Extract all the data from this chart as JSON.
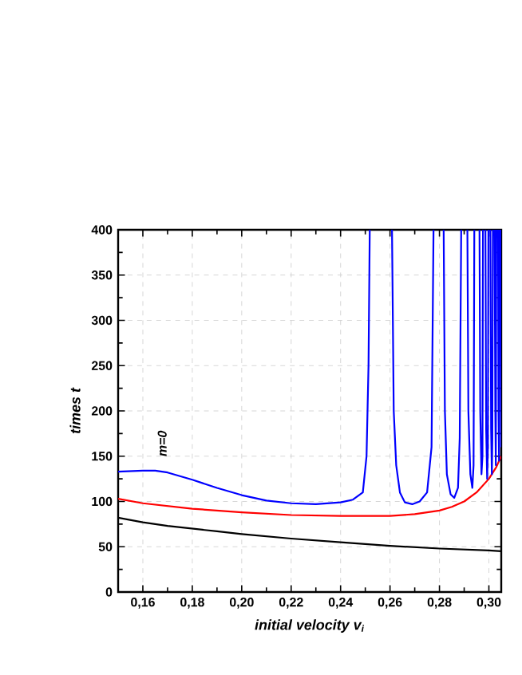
{
  "chart_data": {
    "type": "line",
    "xlabel": "initial velocity v$_{i}$",
    "ylabel": "times t",
    "xlim": [
      0.15,
      0.305
    ],
    "ylim": [
      0,
      400
    ],
    "xticks": [
      {
        "value": 0.16,
        "label": "0,16"
      },
      {
        "value": 0.18,
        "label": "0,18"
      },
      {
        "value": 0.2,
        "label": "0,20"
      },
      {
        "value": 0.22,
        "label": "0,22"
      },
      {
        "value": 0.24,
        "label": "0,24"
      },
      {
        "value": 0.26,
        "label": "0,26"
      },
      {
        "value": 0.28,
        "label": "0,28"
      },
      {
        "value": 0.3,
        "label": "0,30"
      }
    ],
    "yticks": [
      0,
      50,
      100,
      150,
      200,
      250,
      300,
      350,
      400
    ],
    "grid": true,
    "marker": "none",
    "line_style": "solid",
    "annotations": [
      "m=0"
    ],
    "series": [
      {
        "color": "#000000",
        "x": [
          0.15,
          0.16,
          0.17,
          0.18,
          0.19,
          0.2,
          0.22,
          0.24,
          0.26,
          0.28,
          0.3,
          0.305
        ],
        "values": [
          82,
          77,
          73,
          70,
          67,
          64,
          59,
          55,
          51,
          48,
          46,
          45
        ]
      },
      {
        "color": "#ff0000",
        "x": [
          0.15,
          0.16,
          0.18,
          0.2,
          0.22,
          0.24,
          0.26,
          0.27,
          0.28,
          0.285,
          0.29,
          0.295,
          0.3,
          0.303,
          0.305
        ],
        "values": [
          103,
          98,
          92,
          88,
          85,
          84,
          84,
          86,
          90,
          94,
          100,
          110,
          125,
          138,
          150
        ]
      },
      {
        "color": "#0000ff",
        "x": [
          0.15,
          0.16,
          0.165,
          0.17,
          0.18,
          0.19,
          0.2,
          0.21,
          0.22,
          0.23,
          0.24,
          0.245,
          0.249,
          0.2505,
          0.2513,
          0.2518,
          0.2525,
          0.2608,
          0.2615,
          0.2625,
          0.264,
          0.266,
          0.269,
          0.272,
          0.275,
          0.2768,
          0.2776,
          0.278,
          0.2817,
          0.2822,
          0.283,
          0.2845,
          0.286,
          0.2875,
          0.2882,
          0.2888,
          0.289,
          0.2913,
          0.2917,
          0.2925,
          0.2933,
          0.2938,
          0.2941,
          0.2945,
          0.2962,
          0.2965,
          0.297,
          0.2974,
          0.2976,
          0.2978,
          0.2986,
          0.2989,
          0.2993,
          0.2996,
          0.2998,
          0.3,
          0.3006,
          0.3009,
          0.3012,
          0.3014,
          0.3016,
          0.302,
          0.3023,
          0.3026,
          0.3028,
          0.303,
          0.3034,
          0.3037,
          0.3039,
          0.3041,
          0.3043,
          0.3046,
          0.3048,
          0.305
        ],
        "values": [
          133,
          134,
          134,
          132,
          124,
          115,
          107,
          101,
          98,
          97,
          99,
          102,
          110,
          150,
          250,
          400,
          null,
          400,
          200,
          140,
          110,
          99,
          97,
          100,
          110,
          160,
          400,
          null,
          400,
          200,
          130,
          108,
          104,
          115,
          170,
          400,
          null,
          400,
          200,
          130,
          115,
          140,
          400,
          null,
          400,
          200,
          130,
          150,
          400,
          null,
          400,
          180,
          125,
          160,
          400,
          null,
          400,
          180,
          130,
          170,
          400,
          null,
          400,
          200,
          140,
          400,
          null,
          400,
          200,
          145,
          400,
          null,
          400,
          160
        ]
      }
    ]
  }
}
